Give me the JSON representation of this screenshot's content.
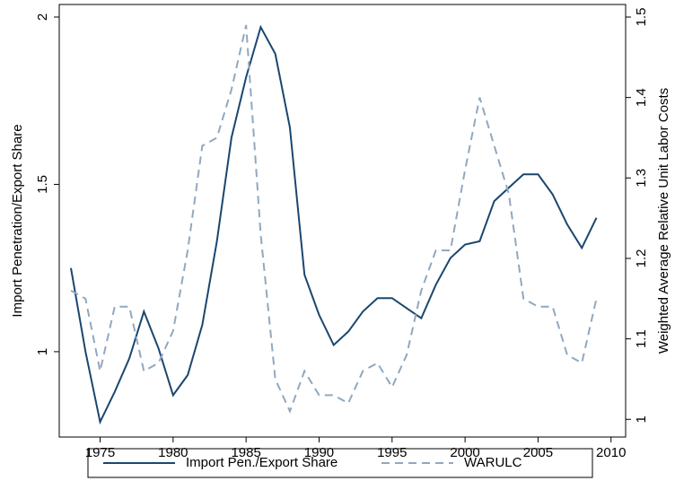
{
  "chart_data": {
    "type": "line",
    "x": [
      1973,
      1974,
      1975,
      1976,
      1977,
      1978,
      1979,
      1980,
      1981,
      1982,
      1983,
      1984,
      1985,
      1986,
      1987,
      1988,
      1989,
      1990,
      1991,
      1992,
      1993,
      1994,
      1995,
      1996,
      1997,
      1998,
      1999,
      2000,
      2001,
      2002,
      2003,
      2004,
      2005,
      2006,
      2007,
      2008,
      2009
    ],
    "xlim": [
      1972.2,
      2011
    ],
    "xticks": [
      1975,
      1980,
      1985,
      1990,
      1995,
      2000,
      2005,
      2010
    ],
    "ylabel": "Import Penetration/Export Share",
    "ylim": [
      0.745,
      2.0375
    ],
    "yticks": [
      1,
      1.5,
      2
    ],
    "y2label": "Weighted Average Relative Unit Labor Costs",
    "y2lim": [
      0.978,
      1.5156
    ],
    "y2ticks": [
      1,
      1.1,
      1.2,
      1.3,
      1.4,
      1.5
    ],
    "series": [
      {
        "name": "Import Pen./Export Share",
        "color": "#1a476f",
        "dash": "solid",
        "values": [
          1.25,
          1.0,
          0.79,
          0.88,
          0.98,
          1.12,
          1.01,
          0.87,
          0.93,
          1.08,
          1.33,
          1.64,
          1.82,
          1.97,
          1.89,
          1.67,
          1.23,
          1.11,
          1.02,
          1.06,
          1.12,
          1.16,
          1.16,
          1.13,
          1.1,
          1.2,
          1.28,
          1.32,
          1.33,
          1.45,
          1.49,
          1.53,
          1.53,
          1.47,
          1.38,
          1.31,
          1.4
        ]
      },
      {
        "name": "WARULC",
        "color": "#90a8c0",
        "dash": "dashed",
        "axis": "y2",
        "values": [
          1.16,
          1.15,
          1.06,
          1.14,
          1.14,
          1.06,
          1.07,
          1.11,
          1.21,
          1.34,
          1.35,
          1.41,
          1.49,
          1.23,
          1.05,
          1.01,
          1.06,
          1.03,
          1.03,
          1.02,
          1.06,
          1.07,
          1.04,
          1.08,
          1.16,
          1.21,
          1.21,
          1.31,
          1.4,
          1.34,
          1.28,
          1.15,
          1.14,
          1.14,
          1.08,
          1.07,
          1.15
        ]
      }
    ]
  }
}
